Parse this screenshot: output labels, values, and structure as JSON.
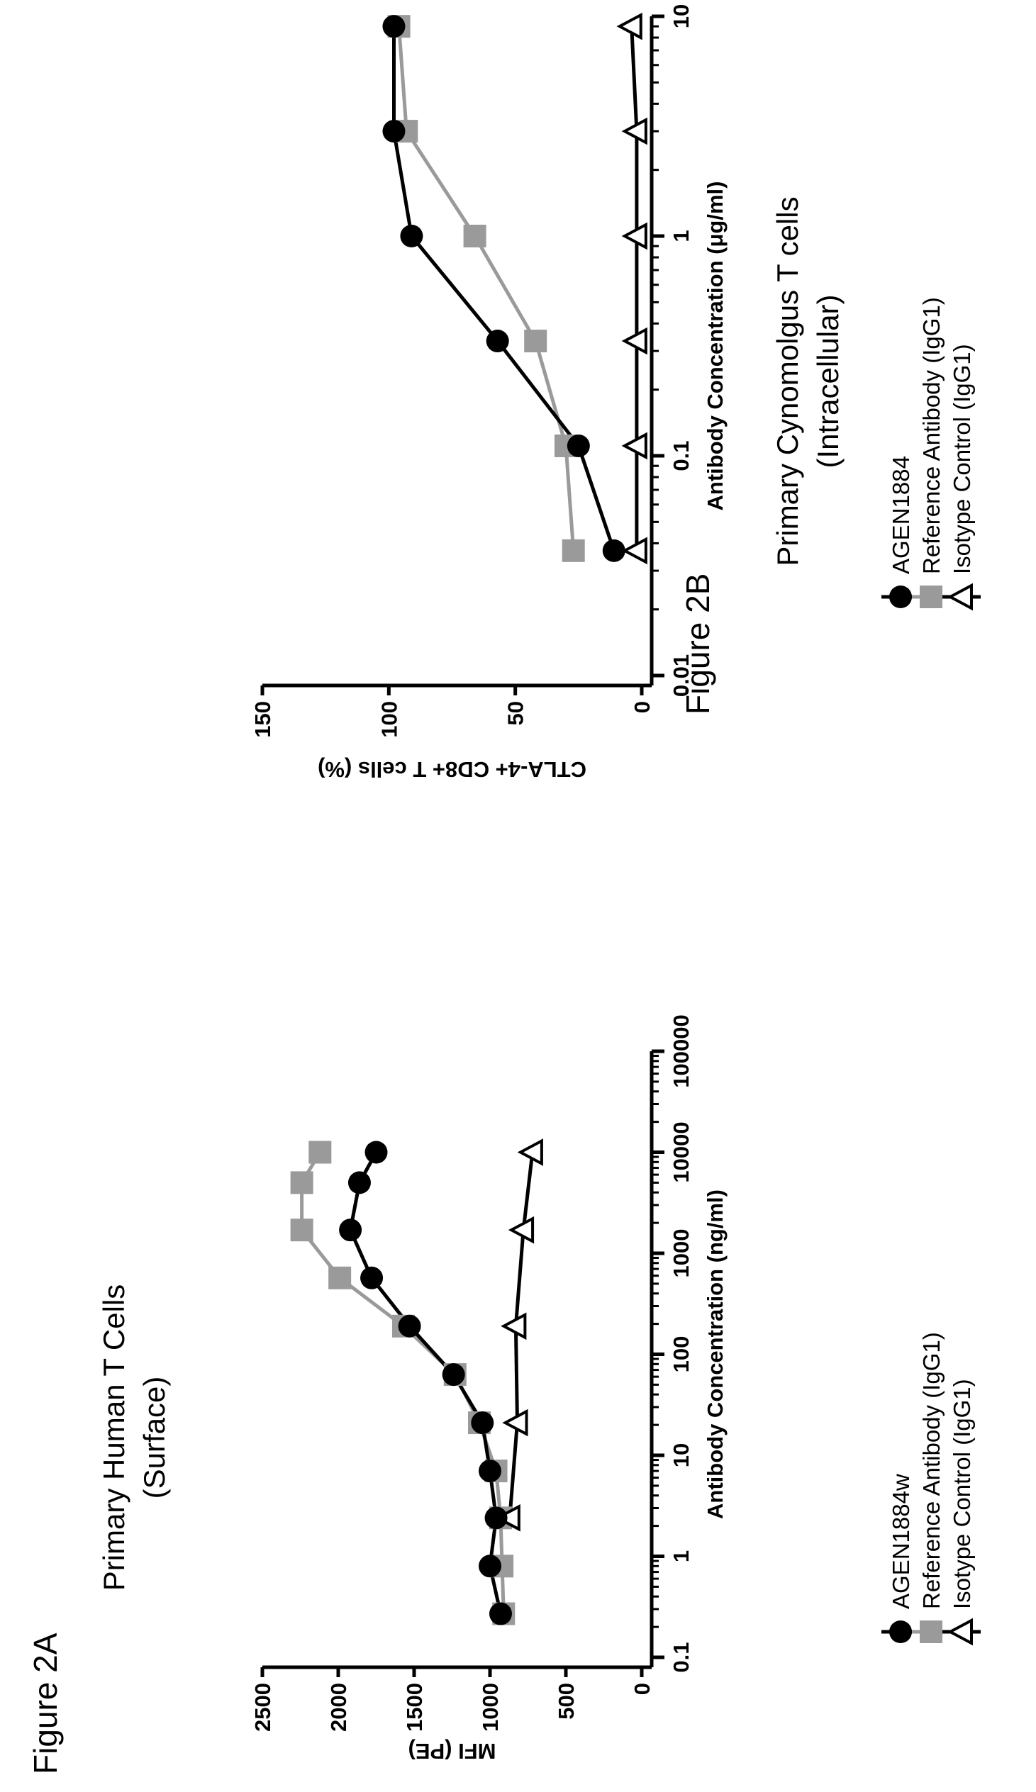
{
  "figures": [
    {
      "label": "Figure 2A",
      "title_line1": "Primary Human T Cells",
      "title_line2": "(Surface)"
    },
    {
      "label": "Figure 2B",
      "title_line1": "Primary Cynomolgus T cells",
      "title_line2": "(Intracellular)"
    }
  ],
  "colors": {
    "agen": "#000000",
    "reference": "#9a9a9a",
    "isotype": "#000000"
  },
  "chart_data": [
    {
      "type": "line",
      "xscale": "log",
      "xlabel": "Antibody Concentration (ng/ml)",
      "ylabel": "MFI (PE)",
      "xlim": [
        0.1,
        100000
      ],
      "ylim": [
        0,
        2500
      ],
      "xticks": [
        "0.1",
        "1",
        "10",
        "100",
        "1000",
        "10000",
        "100000"
      ],
      "yticks": [
        "0",
        "500",
        "1000",
        "1500",
        "2000",
        "2500"
      ],
      "legend": [
        "AGEN1884w",
        "Reference Antibody (IgG1)",
        "Isotype Control (IgG1)"
      ],
      "series": [
        {
          "name": "AGEN1884w",
          "marker": "circle",
          "x": [
            0.27,
            0.8,
            2.4,
            7,
            21,
            63,
            190,
            570,
            1700,
            5000,
            10000
          ],
          "y": [
            930,
            1000,
            960,
            1000,
            1050,
            1240,
            1530,
            1780,
            1920,
            1860,
            1750
          ]
        },
        {
          "name": "Reference Antibody (IgG1)",
          "marker": "square",
          "x": [
            0.27,
            0.8,
            2.4,
            7,
            21,
            63,
            190,
            570,
            1700,
            5000,
            10000
          ],
          "y": [
            910,
            920,
            930,
            960,
            1070,
            1230,
            1570,
            1990,
            2240,
            2240,
            2120
          ]
        },
        {
          "name": "Isotype Control (IgG1)",
          "marker": "triangle",
          "x": [
            2.4,
            21,
            190,
            1700,
            10000
          ],
          "y": [
            870,
            820,
            830,
            780,
            720
          ]
        }
      ]
    },
    {
      "type": "line",
      "xscale": "log",
      "xlabel": "Antibody Concentration (μg/ml)",
      "ylabel": "CTLA-4+ CD8+ T cells (%)",
      "xlim": [
        0.01,
        10
      ],
      "ylim": [
        0,
        150
      ],
      "xticks": [
        "0.01",
        "0.1",
        "1",
        "10"
      ],
      "yticks": [
        "0",
        "50",
        "100",
        "150"
      ],
      "legend": [
        "AGEN1884",
        "Reference Antibody (IgG1)",
        "Isotype Control (IgG1)"
      ],
      "series": [
        {
          "name": "AGEN1884",
          "marker": "circle",
          "x": [
            0.037,
            0.111,
            0.333,
            1,
            3,
            9
          ],
          "y": [
            11,
            25,
            57,
            91,
            98,
            98
          ]
        },
        {
          "name": "Reference Antibody (IgG1)",
          "marker": "square",
          "x": [
            0.037,
            0.111,
            0.333,
            1,
            3,
            9
          ],
          "y": [
            27,
            30,
            42,
            66,
            93,
            96
          ]
        },
        {
          "name": "Isotype Control (IgG1)",
          "marker": "triangle",
          "x": [
            0.037,
            0.111,
            0.333,
            1,
            3,
            9
          ],
          "y": [
            2,
            2,
            2,
            2,
            2,
            4
          ]
        }
      ]
    }
  ]
}
